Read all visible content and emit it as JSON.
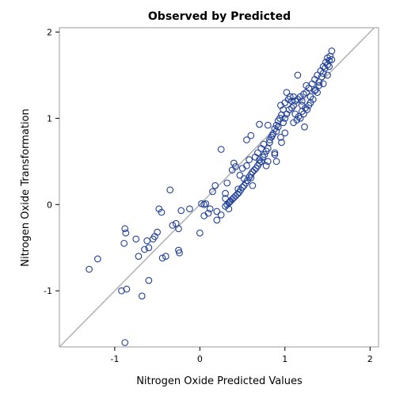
{
  "chart_data": {
    "type": "scatter",
    "title": "Observed by Predicted",
    "xlabel": "Nitrogen Oxide Predicted Values",
    "ylabel": "Nitrogen Oxide Transformation",
    "xlim": [
      -1.65,
      2.1
    ],
    "ylim": [
      -1.65,
      2.05
    ],
    "x_ticks": [
      -1,
      0,
      1,
      2
    ],
    "y_ticks": [
      -1,
      0,
      1,
      2
    ],
    "tick_labels_x": [
      "-1",
      "0",
      "1",
      "2"
    ],
    "tick_labels_y": [
      "-1",
      "0",
      "1",
      "2"
    ],
    "reference_line": "y = x",
    "grid": false,
    "colors": {
      "marker": "#1f3f99",
      "reference_line": "#b0b0b0",
      "frame": "#999999"
    },
    "points": [
      [
        -1.3,
        -0.75
      ],
      [
        -1.2,
        -0.63
      ],
      [
        -0.92,
        -1.0
      ],
      [
        -0.86,
        -0.98
      ],
      [
        -0.88,
        -0.28
      ],
      [
        -0.87,
        -0.33
      ],
      [
        -0.89,
        -0.45
      ],
      [
        -0.88,
        -1.6
      ],
      [
        -0.68,
        -1.06
      ],
      [
        -0.6,
        -0.88
      ],
      [
        -0.75,
        -0.4
      ],
      [
        -0.72,
        -0.6
      ],
      [
        -0.65,
        -0.52
      ],
      [
        -0.62,
        -0.42
      ],
      [
        -0.6,
        -0.5
      ],
      [
        -0.55,
        -0.4
      ],
      [
        -0.53,
        -0.37
      ],
      [
        -0.5,
        -0.32
      ],
      [
        -0.48,
        -0.05
      ],
      [
        -0.45,
        -0.09
      ],
      [
        -0.44,
        -0.62
      ],
      [
        -0.4,
        -0.6
      ],
      [
        -0.35,
        0.17
      ],
      [
        -0.32,
        -0.24
      ],
      [
        -0.28,
        -0.22
      ],
      [
        -0.25,
        -0.28
      ],
      [
        -0.25,
        -0.53
      ],
      [
        -0.24,
        -0.56
      ],
      [
        -0.22,
        -0.07
      ],
      [
        -0.12,
        -0.05
      ],
      [
        0.02,
        0.01
      ],
      [
        0.05,
        0.0
      ],
      [
        0.07,
        0.01
      ],
      [
        0.1,
        -0.1
      ],
      [
        0.05,
        -0.13
      ],
      [
        0.0,
        -0.33
      ],
      [
        0.12,
        -0.05
      ],
      [
        0.15,
        0.15
      ],
      [
        0.18,
        0.22
      ],
      [
        0.2,
        -0.08
      ],
      [
        0.2,
        -0.18
      ],
      [
        0.25,
        -0.12
      ],
      [
        0.3,
        0.13
      ],
      [
        0.3,
        0.07
      ],
      [
        0.32,
        0.25
      ],
      [
        0.34,
        -0.05
      ],
      [
        0.35,
        0.03
      ],
      [
        0.38,
        0.4
      ],
      [
        0.4,
        0.48
      ],
      [
        0.42,
        0.44
      ],
      [
        0.45,
        0.18
      ],
      [
        0.47,
        0.34
      ],
      [
        0.5,
        0.42
      ],
      [
        0.52,
        0.3
      ],
      [
        0.55,
        0.45
      ],
      [
        0.58,
        0.52
      ],
      [
        0.6,
        0.31
      ],
      [
        0.62,
        0.22
      ],
      [
        0.65,
        0.55
      ],
      [
        0.68,
        0.6
      ],
      [
        0.7,
        0.52
      ],
      [
        0.72,
        0.65
      ],
      [
        0.75,
        0.7
      ],
      [
        0.78,
        0.45
      ],
      [
        0.8,
        0.5
      ],
      [
        0.82,
        0.75
      ],
      [
        0.85,
        0.8
      ],
      [
        0.88,
        0.6
      ],
      [
        0.9,
        0.85
      ],
      [
        0.92,
        0.9
      ],
      [
        0.95,
        0.78
      ],
      [
        0.98,
        0.95
      ],
      [
        1.0,
        1.0
      ],
      [
        1.02,
        1.05
      ],
      [
        1.05,
        1.1
      ],
      [
        1.08,
        1.12
      ],
      [
        1.1,
        0.95
      ],
      [
        1.12,
        1.2
      ],
      [
        1.15,
        1.22
      ],
      [
        1.18,
        1.25
      ],
      [
        1.2,
        1.15
      ],
      [
        1.22,
        1.28
      ],
      [
        1.25,
        1.3
      ],
      [
        1.28,
        1.35
      ],
      [
        1.3,
        1.25
      ],
      [
        1.32,
        1.4
      ],
      [
        1.35,
        1.45
      ],
      [
        1.38,
        1.5
      ],
      [
        1.4,
        1.38
      ],
      [
        1.42,
        1.55
      ],
      [
        1.45,
        1.6
      ],
      [
        1.48,
        1.65
      ],
      [
        1.5,
        1.7
      ],
      [
        1.52,
        1.67
      ],
      [
        1.53,
        1.72
      ],
      [
        1.55,
        1.68
      ],
      [
        1.55,
        1.78
      ],
      [
        1.52,
        1.6
      ],
      [
        1.5,
        1.62
      ],
      [
        1.47,
        1.58
      ],
      [
        1.45,
        1.52
      ],
      [
        1.43,
        1.48
      ],
      [
        1.4,
        1.42
      ],
      [
        1.38,
        1.3
      ],
      [
        1.36,
        1.33
      ],
      [
        1.33,
        1.22
      ],
      [
        1.3,
        1.18
      ],
      [
        1.28,
        1.15
      ],
      [
        1.26,
        1.1
      ],
      [
        1.24,
        1.12
      ],
      [
        1.22,
        1.05
      ],
      [
        1.2,
        1.08
      ],
      [
        1.18,
        1.0
      ],
      [
        1.16,
        1.02
      ],
      [
        1.14,
        0.98
      ],
      [
        1.12,
        1.05
      ],
      [
        1.1,
        1.15
      ],
      [
        1.08,
        1.2
      ],
      [
        1.06,
        1.25
      ],
      [
        1.04,
        1.22
      ],
      [
        1.02,
        1.3
      ],
      [
        1.0,
        1.18
      ],
      [
        0.98,
        1.1
      ],
      [
        0.96,
        1.04
      ],
      [
        0.94,
        1.0
      ],
      [
        0.92,
        0.97
      ],
      [
        0.9,
        0.92
      ],
      [
        0.88,
        0.88
      ],
      [
        0.86,
        0.82
      ],
      [
        0.84,
        0.78
      ],
      [
        0.82,
        0.72
      ],
      [
        0.8,
        0.65
      ],
      [
        0.78,
        0.62
      ],
      [
        0.76,
        0.58
      ],
      [
        0.74,
        0.55
      ],
      [
        0.72,
        0.5
      ],
      [
        0.7,
        0.48
      ],
      [
        0.68,
        0.45
      ],
      [
        0.66,
        0.42
      ],
      [
        0.64,
        0.4
      ],
      [
        0.62,
        0.38
      ],
      [
        0.6,
        0.35
      ],
      [
        0.58,
        0.32
      ],
      [
        0.56,
        0.28
      ],
      [
        0.54,
        0.25
      ],
      [
        0.52,
        0.22
      ],
      [
        0.5,
        0.2
      ],
      [
        0.48,
        0.17
      ],
      [
        0.46,
        0.14
      ],
      [
        0.44,
        0.12
      ],
      [
        0.42,
        0.1
      ],
      [
        0.4,
        0.08
      ],
      [
        0.38,
        0.06
      ],
      [
        0.36,
        0.04
      ],
      [
        0.34,
        0.02
      ],
      [
        0.32,
        0.0
      ],
      [
        0.3,
        -0.02
      ],
      [
        1.23,
        0.9
      ],
      [
        1.0,
        0.83
      ],
      [
        0.96,
        0.72
      ],
      [
        0.9,
        0.5
      ],
      [
        0.88,
        0.58
      ],
      [
        0.8,
        0.92
      ],
      [
        0.7,
        0.93
      ],
      [
        0.6,
        0.8
      ],
      [
        0.55,
        0.75
      ],
      [
        0.25,
        0.64
      ],
      [
        1.15,
        1.5
      ],
      [
        1.25,
        1.38
      ],
      [
        1.35,
        1.32
      ],
      [
        1.45,
        1.4
      ],
      [
        1.5,
        1.5
      ],
      [
        1.2,
        1.2
      ],
      [
        1.1,
        1.25
      ],
      [
        0.95,
        1.15
      ]
    ]
  }
}
